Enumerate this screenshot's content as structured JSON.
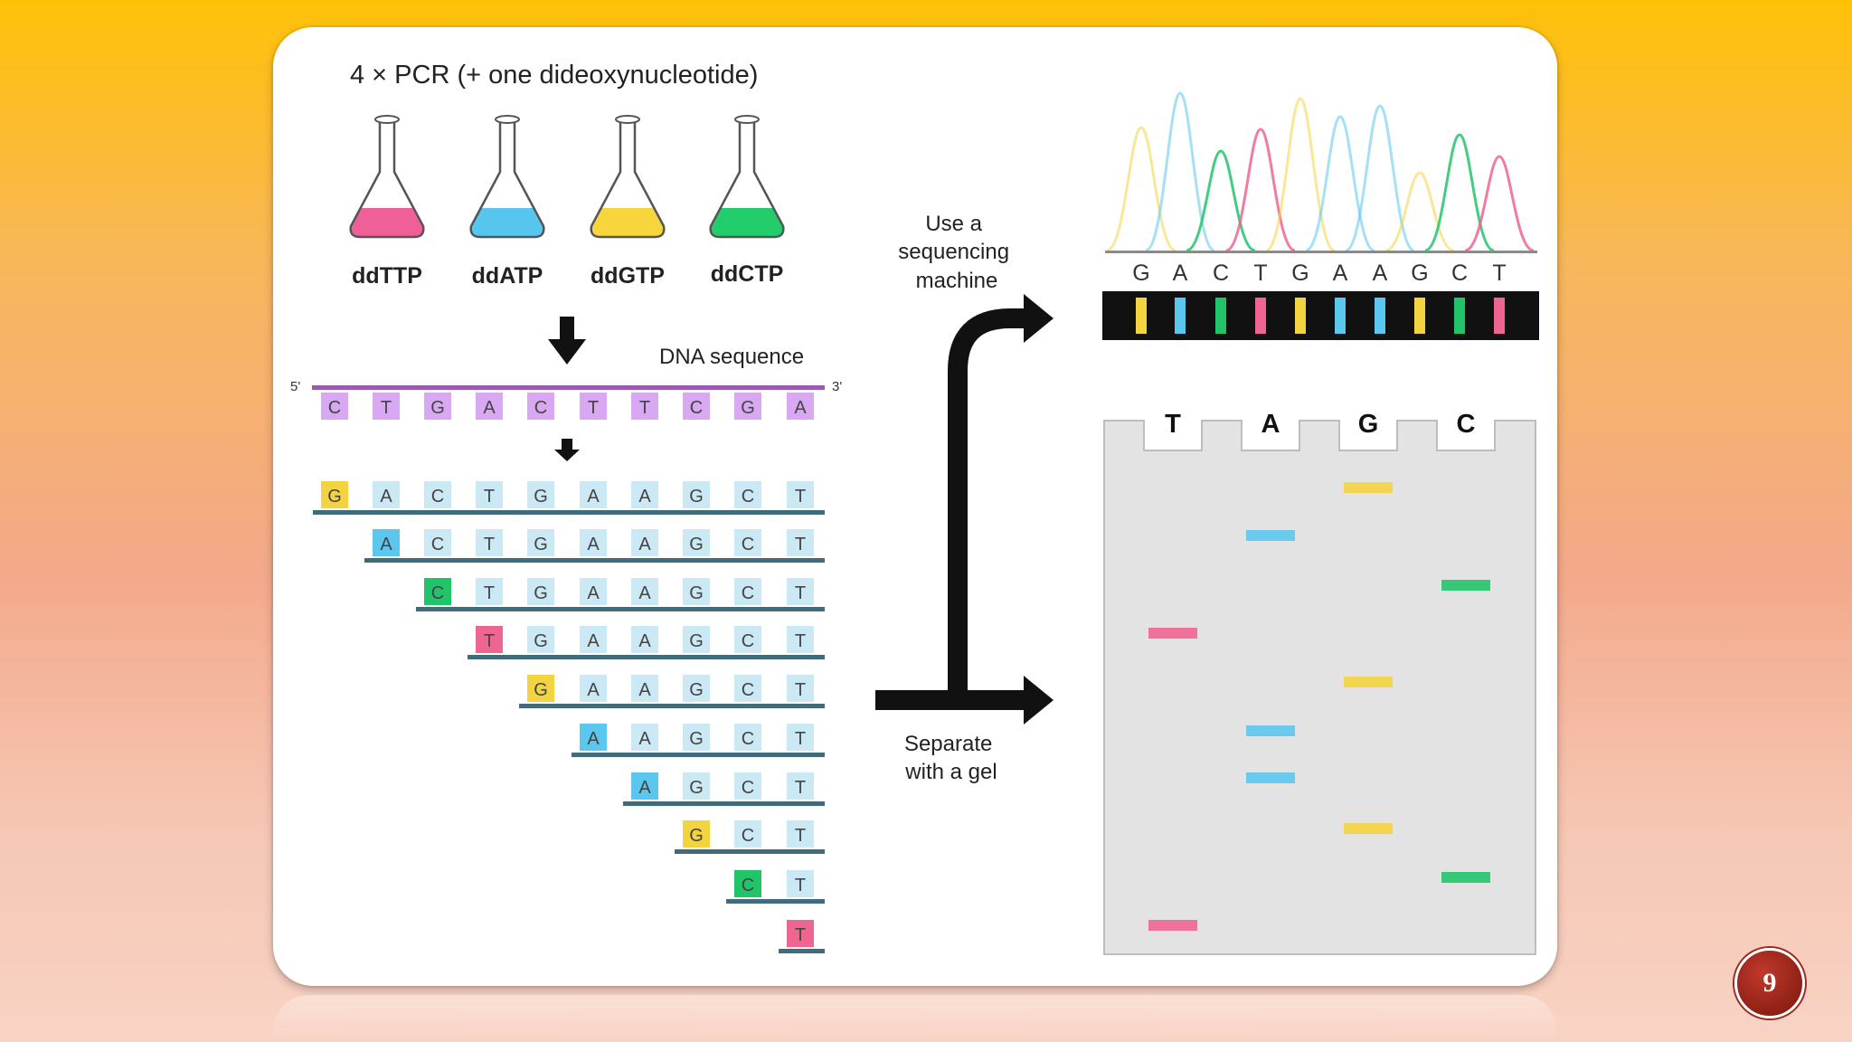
{
  "title": "4 × PCR (+ one dideoxynucleotide)",
  "flasks": [
    {
      "label": "ddTTP",
      "color": "#ef5f98"
    },
    {
      "label": "ddATP",
      "color": "#56c6ef"
    },
    {
      "label": "ddGTP",
      "color": "#f7d63d"
    },
    {
      "label": "ddCTP",
      "color": "#23cd6c"
    }
  ],
  "dna_sequence_label": "DNA sequence",
  "end_5": "5'",
  "end_3": "3'",
  "template_bases": [
    "C",
    "T",
    "G",
    "A",
    "C",
    "T",
    "T",
    "C",
    "G",
    "A"
  ],
  "fragments_full": [
    "G",
    "A",
    "C",
    "T",
    "G",
    "A",
    "A",
    "G",
    "C",
    "T"
  ],
  "use_machine_label": [
    "Use a",
    "sequencing",
    "machine"
  ],
  "separate_gel_label": [
    "Separate",
    "with a gel"
  ],
  "readout_bases": [
    "G",
    "A",
    "C",
    "T",
    "G",
    "A",
    "A",
    "G",
    "C",
    "T"
  ],
  "gel_lanes": [
    "T",
    "A",
    "G",
    "C"
  ],
  "base_colors": {
    "T": "#ef6591",
    "A": "#5bc6ee",
    "G": "#f4d341",
    "C": "#22c46a"
  },
  "template_color": "#d9a8f2",
  "page_number": "9"
}
